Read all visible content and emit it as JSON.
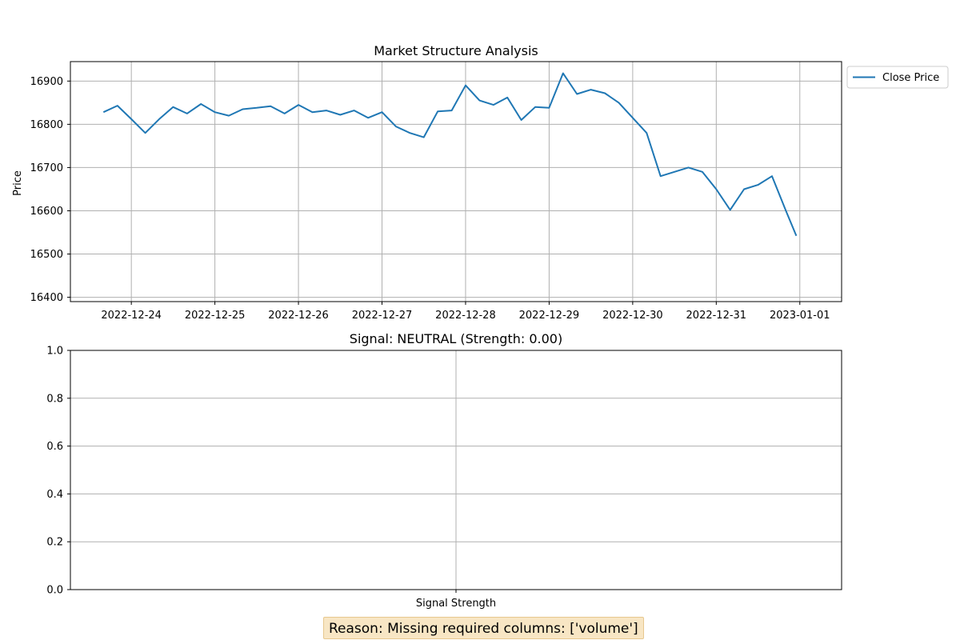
{
  "chart_data": [
    {
      "type": "line",
      "title": "Market Structure Analysis",
      "xlabel": "",
      "ylabel": "Price",
      "x_ticks": [
        "2022-12-24",
        "2022-12-25",
        "2022-12-26",
        "2022-12-27",
        "2022-12-28",
        "2022-12-29",
        "2022-12-30",
        "2022-12-31",
        "2023-01-01"
      ],
      "xlim": [
        "2022-12-23 06:30",
        "2023-01-01 12:00"
      ],
      "ylim": [
        16390,
        16945
      ],
      "y_ticks": [
        16400,
        16500,
        16600,
        16700,
        16800,
        16900
      ],
      "grid": true,
      "legend_position": "outside upper right",
      "series": [
        {
          "name": "Close Price",
          "color": "#1f77b4",
          "x": [
            "2022-12-23 16:00",
            "2022-12-23 20:00",
            "2022-12-24 00:00",
            "2022-12-24 04:00",
            "2022-12-24 08:00",
            "2022-12-24 12:00",
            "2022-12-24 16:00",
            "2022-12-24 20:00",
            "2022-12-25 00:00",
            "2022-12-25 04:00",
            "2022-12-25 08:00",
            "2022-12-25 12:00",
            "2022-12-25 16:00",
            "2022-12-25 20:00",
            "2022-12-26 00:00",
            "2022-12-26 04:00",
            "2022-12-26 08:00",
            "2022-12-26 12:00",
            "2022-12-26 16:00",
            "2022-12-26 20:00",
            "2022-12-27 00:00",
            "2022-12-27 04:00",
            "2022-12-27 08:00",
            "2022-12-27 12:00",
            "2022-12-27 16:00",
            "2022-12-27 20:00",
            "2022-12-28 00:00",
            "2022-12-28 04:00",
            "2022-12-28 08:00",
            "2022-12-28 12:00",
            "2022-12-28 16:00",
            "2022-12-28 20:00",
            "2022-12-29 00:00",
            "2022-12-29 04:00",
            "2022-12-29 08:00",
            "2022-12-29 12:00",
            "2022-12-29 16:00",
            "2022-12-29 20:00",
            "2022-12-30 00:00",
            "2022-12-30 04:00",
            "2022-12-30 08:00",
            "2022-12-30 12:00",
            "2022-12-30 16:00",
            "2022-12-30 20:00",
            "2022-12-31 00:00",
            "2022-12-31 04:00",
            "2022-12-31 08:00",
            "2022-12-31 12:00",
            "2022-12-31 16:00",
            "2022-12-31 20:00",
            "2022-12-31 23:00"
          ],
          "y": [
            16828,
            16843,
            16812,
            16780,
            16812,
            16840,
            16825,
            16847,
            16828,
            16820,
            16835,
            16838,
            16842,
            16825,
            16845,
            16828,
            16832,
            16822,
            16832,
            16815,
            16828,
            16795,
            16780,
            16770,
            16830,
            16832,
            16890,
            16855,
            16845,
            16862,
            16810,
            16840,
            16838,
            16918,
            16870,
            16880,
            16872,
            16850,
            16815,
            16780,
            16680,
            16690,
            16700,
            16690,
            16650,
            16602,
            16650,
            16660,
            16680,
            16600,
            16542
          ]
        }
      ]
    },
    {
      "type": "bar",
      "title": "Signal: NEUTRAL (Strength: 0.00)",
      "categories": [
        "Signal Strength"
      ],
      "values": [
        0.0
      ],
      "ylim": [
        0,
        1
      ],
      "y_ticks": [
        "0.0",
        "0.2",
        "0.4",
        "0.6",
        "0.8",
        "1.0"
      ],
      "grid": true
    }
  ],
  "reason_text": "Reason: Missing required columns: ['volume']",
  "reason_box_color": "#f8e6c4"
}
